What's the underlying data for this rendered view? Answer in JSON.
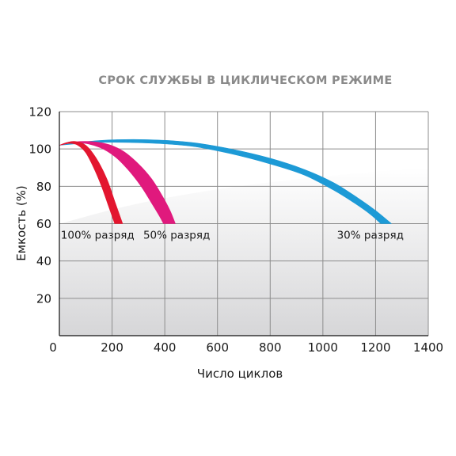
{
  "chart_data": {
    "type": "area",
    "title": "СРОК СЛУЖБЫ В ЦИКЛИЧЕСКОМ РЕЖИМЕ",
    "xlabel": "Число циклов",
    "ylabel": "Емкость (%)",
    "xlim": [
      0,
      1400
    ],
    "ylim": [
      0,
      120
    ],
    "x_ticks": [
      "0",
      "200",
      "400",
      "600",
      "800",
      "1000",
      "1200",
      "1400"
    ],
    "y_ticks": [
      "20",
      "40",
      "60",
      "80",
      "100",
      "120"
    ],
    "grid": true,
    "legend": "none",
    "series": [
      {
        "name": "100% разряд",
        "color": "#e3162f",
        "upper": [
          [
            0,
            102
          ],
          [
            30,
            103.5
          ],
          [
            60,
            104
          ],
          [
            100,
            102
          ],
          [
            140,
            95
          ],
          [
            180,
            84
          ],
          [
            210,
            72
          ],
          [
            230,
            64
          ],
          [
            240,
            60
          ]
        ],
        "lower": [
          [
            0,
            102
          ],
          [
            40,
            103
          ],
          [
            70,
            102
          ],
          [
            100,
            98
          ],
          [
            130,
            90
          ],
          [
            160,
            80
          ],
          [
            185,
            70
          ],
          [
            200,
            64
          ],
          [
            210,
            60
          ]
        ]
      },
      {
        "name": "50% разряд",
        "color": "#e0197d",
        "upper": [
          [
            0,
            102
          ],
          [
            80,
            104
          ],
          [
            170,
            103
          ],
          [
            240,
            99
          ],
          [
            300,
            92
          ],
          [
            350,
            84
          ],
          [
            390,
            75
          ],
          [
            420,
            67
          ],
          [
            440,
            60
          ]
        ],
        "lower": [
          [
            0,
            102
          ],
          [
            70,
            103.5
          ],
          [
            150,
            101
          ],
          [
            210,
            96
          ],
          [
            260,
            89
          ],
          [
            310,
            80
          ],
          [
            350,
            71
          ],
          [
            380,
            64
          ],
          [
            395,
            60
          ]
        ]
      },
      {
        "name": "30% разряд",
        "color": "#1d9ad6",
        "upper": [
          [
            0,
            102
          ],
          [
            150,
            104.5
          ],
          [
            330,
            105
          ],
          [
            500,
            103.5
          ],
          [
            650,
            100
          ],
          [
            800,
            95
          ],
          [
            930,
            89
          ],
          [
            1040,
            82
          ],
          [
            1130,
            74
          ],
          [
            1200,
            67
          ],
          [
            1260,
            60
          ]
        ],
        "lower": [
          [
            0,
            102
          ],
          [
            150,
            103.5
          ],
          [
            330,
            103.2
          ],
          [
            500,
            101.5
          ],
          [
            650,
            97.5
          ],
          [
            800,
            92
          ],
          [
            930,
            86
          ],
          [
            1040,
            78
          ],
          [
            1120,
            71
          ],
          [
            1180,
            65
          ],
          [
            1220,
            60
          ]
        ]
      }
    ],
    "annotations": [
      {
        "text": "100% разряд",
        "x": 145,
        "y": 54
      },
      {
        "text": "50% разряд",
        "x": 445,
        "y": 54
      },
      {
        "text": "30% разряд",
        "x": 1180,
        "y": 54
      }
    ]
  }
}
